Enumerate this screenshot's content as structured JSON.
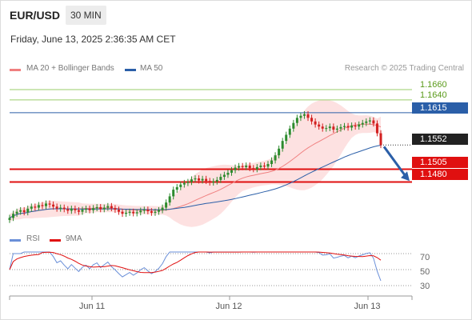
{
  "header": {
    "symbol": "EUR/USD",
    "timeframe": "30 MIN",
    "datetime": "Friday, June 13, 2025 2:36:35 AM CET"
  },
  "legend": {
    "items": [
      {
        "label": "MA 20 + Bollinger Bands",
        "color": "#f08080"
      },
      {
        "label": "MA 50",
        "color": "#2b5fa8"
      }
    ],
    "credit": "Research © 2025 Trading Central"
  },
  "rsi_legend": {
    "items": [
      {
        "label": "RSI",
        "color": "#6a8fd8"
      },
      {
        "label": "9MA",
        "color": "#e01010"
      }
    ]
  },
  "colors": {
    "resistance": "#6aaa2a",
    "pivot": "#2b5fa8",
    "support": "#e01010",
    "up_candle": "#2e8b2e",
    "down_candle": "#d32020",
    "bollinger": "#fcd9d9"
  },
  "chart_data": [
    {
      "type": "candlestick",
      "title": "EUR/USD",
      "timeframe": "30 MIN",
      "x_tick_labels": [
        "Jun 11",
        "Jun 12",
        "Jun 13"
      ],
      "ylim": [
        1.1395,
        1.1685
      ],
      "levels": [
        {
          "value": 1.166,
          "label": "1.1660",
          "kind": "resistance"
        },
        {
          "value": 1.164,
          "label": "1.1640",
          "kind": "resistance"
        },
        {
          "value": 1.1615,
          "label": "1.1615",
          "kind": "pivot"
        },
        {
          "value": 1.1552,
          "label": "1.1552",
          "kind": "last_price"
        },
        {
          "value": 1.1505,
          "label": "1.1505",
          "kind": "support"
        },
        {
          "value": 1.148,
          "label": "1.1480",
          "kind": "support"
        }
      ],
      "close": [
        1.141,
        1.1418,
        1.1422,
        1.1425,
        1.1421,
        1.1428,
        1.1432,
        1.143,
        1.1435,
        1.1433,
        1.1438,
        1.1436,
        1.1432,
        1.1428,
        1.143,
        1.1427,
        1.1424,
        1.1428,
        1.1425,
        1.1422,
        1.1426,
        1.1428,
        1.1425,
        1.1429,
        1.1431,
        1.1427,
        1.143,
        1.1433,
        1.1429,
        1.1426,
        1.1422,
        1.1418,
        1.142,
        1.1422,
        1.1419,
        1.1421,
        1.1424,
        1.1426,
        1.1423,
        1.142,
        1.1422,
        1.1425,
        1.143,
        1.144,
        1.1452,
        1.1465,
        1.147,
        1.1475,
        1.1478,
        1.148,
        1.1485,
        1.1487,
        1.1483,
        1.1486,
        1.1482,
        1.1479,
        1.1481,
        1.1484,
        1.149,
        1.1494,
        1.1498,
        1.1503,
        1.1508,
        1.1511,
        1.1509,
        1.1512,
        1.1507,
        1.1505,
        1.1509,
        1.1512,
        1.151,
        1.1515,
        1.1522,
        1.1532,
        1.1545,
        1.156,
        1.1572,
        1.1584,
        1.1595,
        1.1605,
        1.1609,
        1.1612,
        1.1605,
        1.1598,
        1.1592,
        1.1588,
        1.1584,
        1.1585,
        1.1588,
        1.1582,
        1.1584,
        1.1587,
        1.1589,
        1.1586,
        1.159,
        1.1588,
        1.1592,
        1.1595,
        1.1598,
        1.16,
        1.1594,
        1.1575,
        1.1552
      ],
      "series": [
        {
          "name": "MA 20 + Bollinger Bands",
          "color": "#f08080"
        },
        {
          "name": "MA 50",
          "color": "#2b5fa8"
        }
      ]
    },
    {
      "type": "line",
      "title": "RSI",
      "ylim": [
        25,
        75
      ],
      "yticks": [
        30,
        50,
        70
      ],
      "series": [
        {
          "name": "RSI",
          "color": "#6a8fd8"
        },
        {
          "name": "9MA",
          "color": "#e01010"
        }
      ]
    }
  ]
}
